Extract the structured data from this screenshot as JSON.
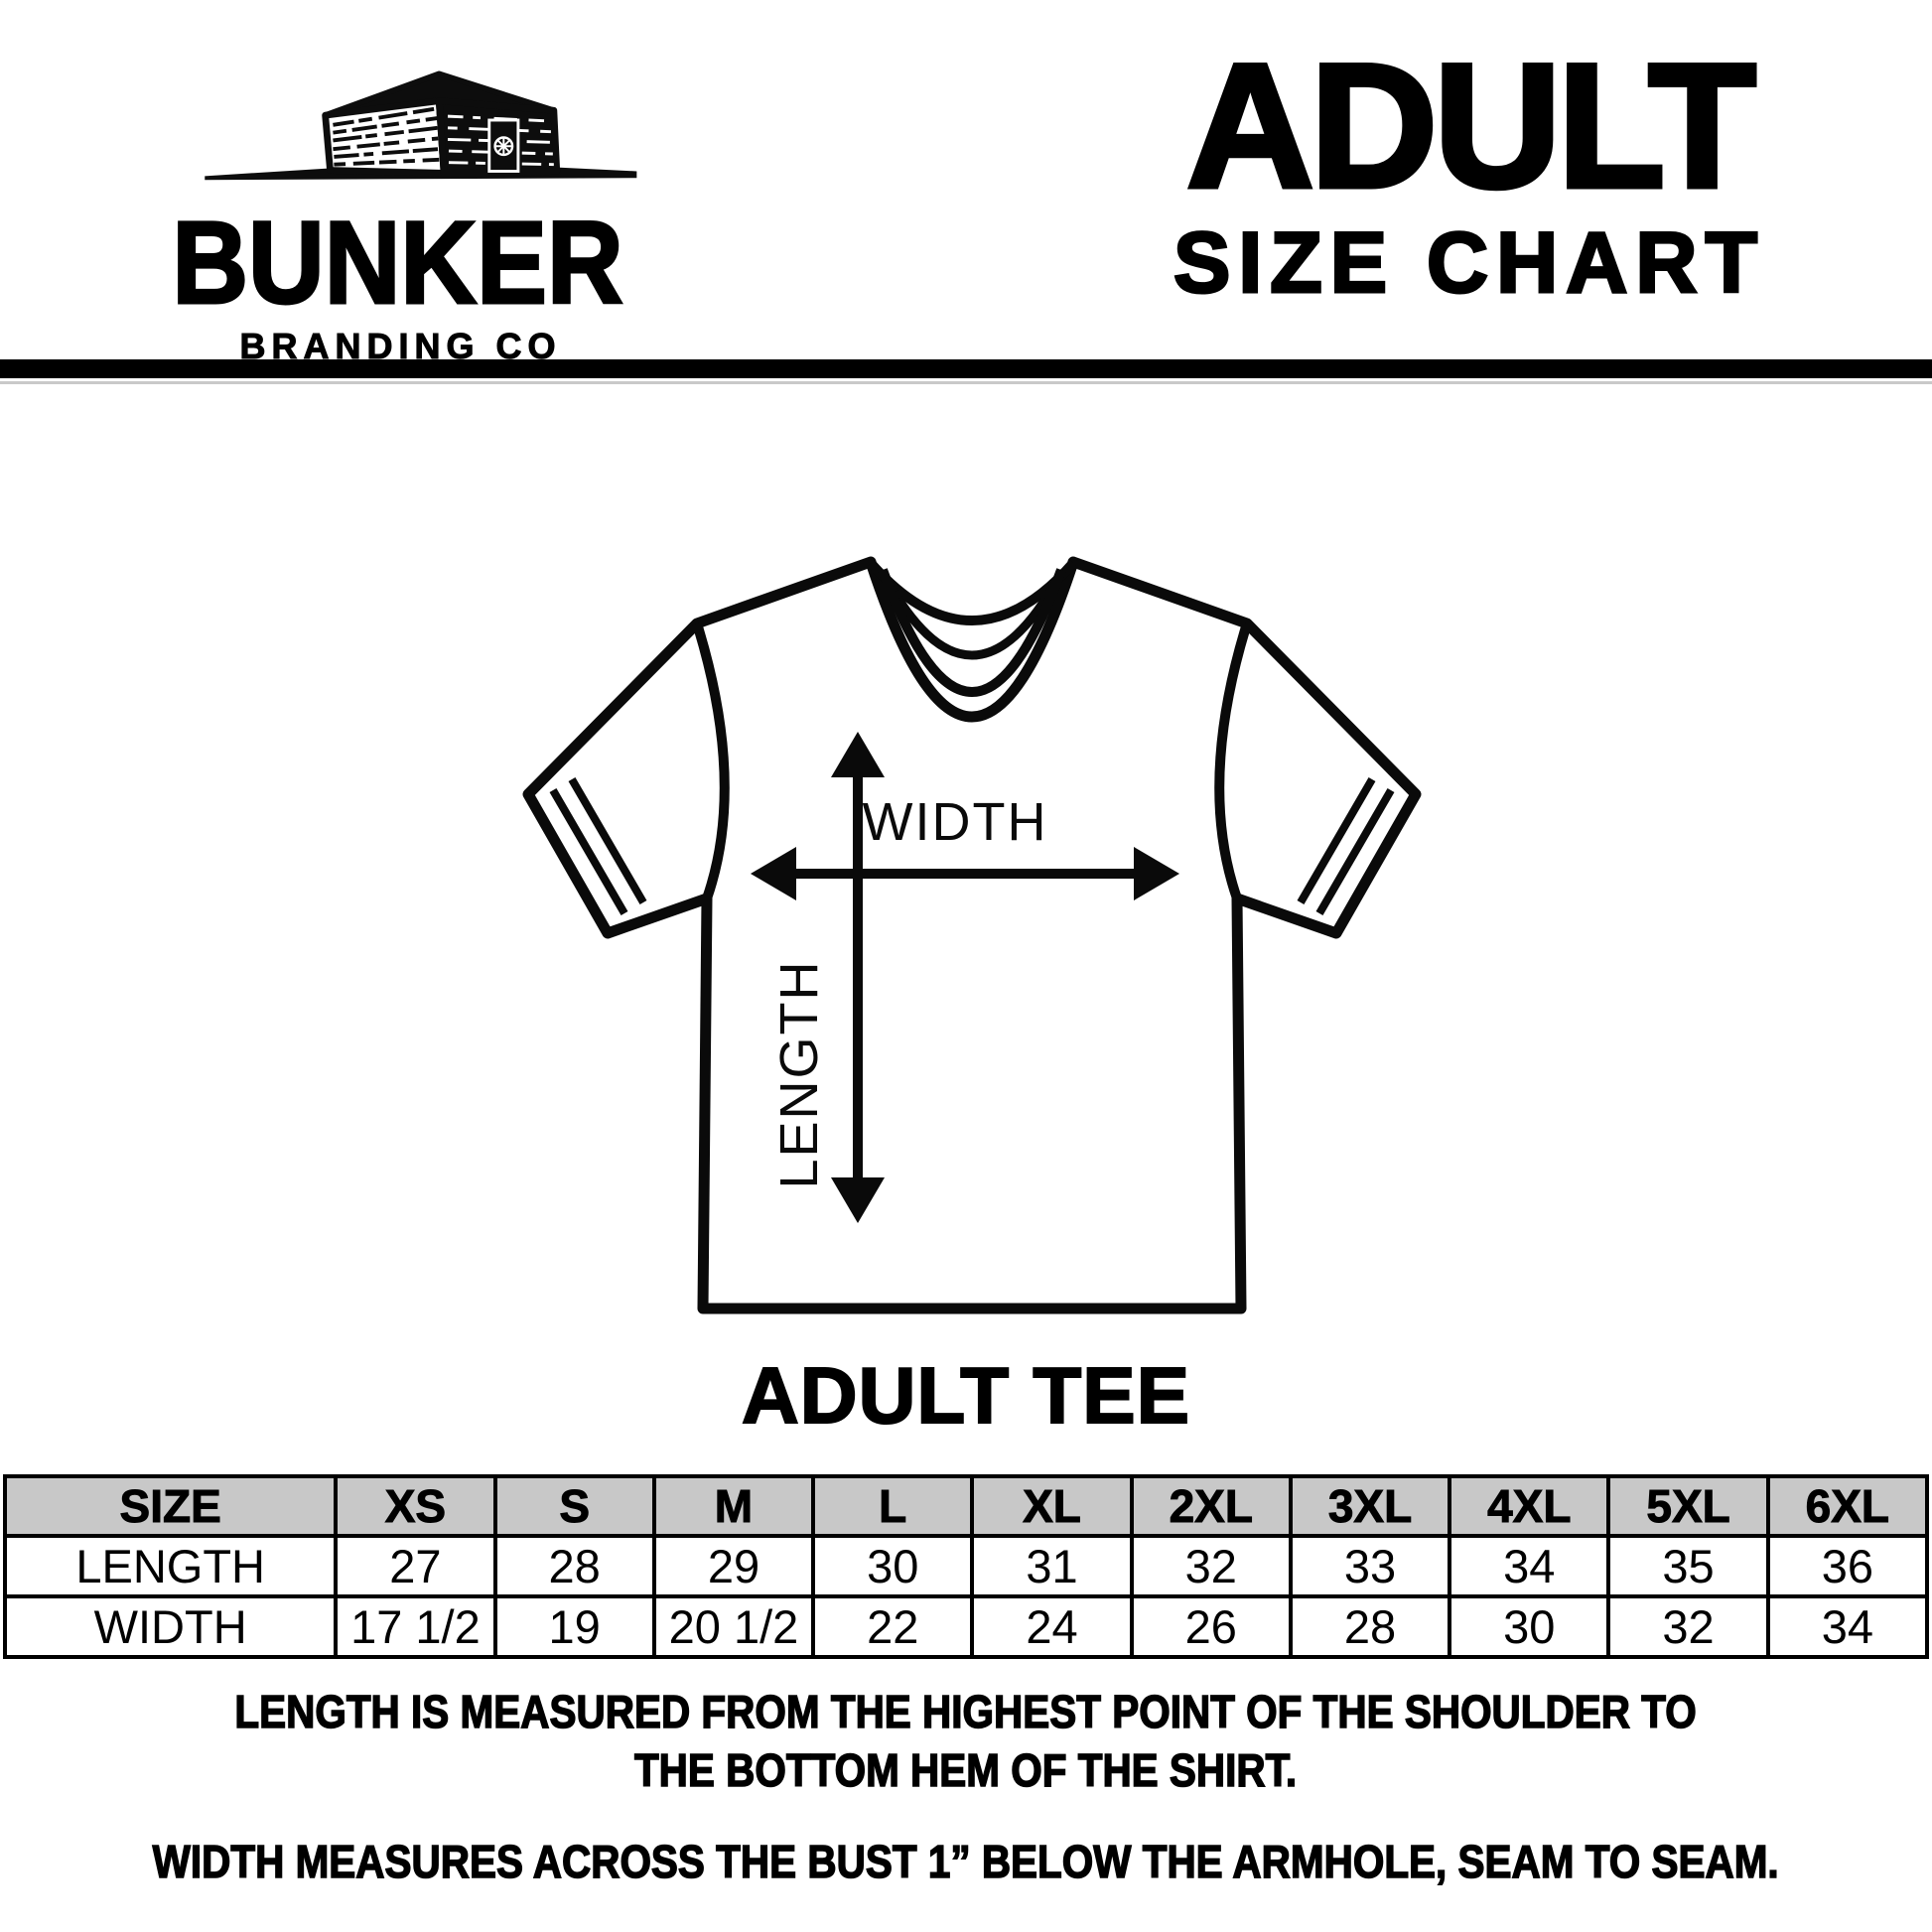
{
  "brand": {
    "name": "BUNKER",
    "subtitle": "BRANDING CO",
    "logo_icon": "bunker-building-icon"
  },
  "header": {
    "title_line1": "ADULT",
    "title_line2": "SIZE CHART"
  },
  "diagram": {
    "width_label": "WIDTH",
    "length_label": "LENGTH",
    "caption": "ADULT TEE"
  },
  "size_table": {
    "header_row": [
      "SIZE",
      "XS",
      "S",
      "M",
      "L",
      "XL",
      "2XL",
      "3XL",
      "4XL",
      "5XL",
      "6XL"
    ],
    "rows": [
      {
        "label": "LENGTH",
        "values": [
          "27",
          "28",
          "29",
          "30",
          "31",
          "32",
          "33",
          "34",
          "35",
          "36"
        ]
      },
      {
        "label": "WIDTH",
        "values": [
          "17 1/2",
          "19",
          "20 1/2",
          "22",
          "24",
          "26",
          "28",
          "30",
          "32",
          "34"
        ]
      }
    ]
  },
  "notes": [
    {
      "lines": [
        "LENGTH IS MEASURED FROM THE HIGHEST POINT OF THE SHOULDER TO",
        "THE BOTTOM HEM OF THE SHIRT."
      ]
    },
    {
      "lines": [
        "WIDTH MEASURES ACROSS THE BUST 1” BELOW THE ARMHOLE, SEAM TO SEAM."
      ]
    }
  ],
  "colors": {
    "ink": "#000000",
    "table_header_bg": "#c8c8c8",
    "background": "#ffffff"
  }
}
